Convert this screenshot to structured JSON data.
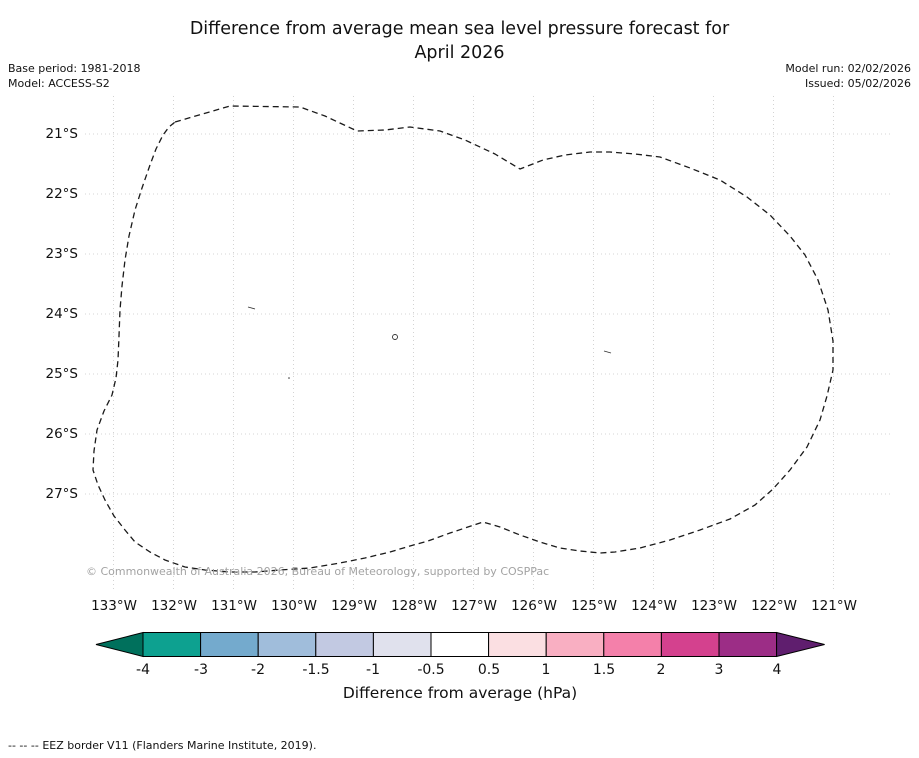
{
  "figure": {
    "title_line1": "Difference from average mean sea level pressure forecast for",
    "title_line2": "April 2026"
  },
  "meta": {
    "base_period": "Base period: 1981-2018",
    "model": "Model: ACCESS-S2",
    "model_run": "Model run: 02/02/2026",
    "issued": "Issued: 05/02/2026"
  },
  "axes": {
    "lat_ticks": [
      "21°S",
      "22°S",
      "23°S",
      "24°S",
      "25°S",
      "26°S",
      "27°S"
    ],
    "lon_ticks": [
      "133°W",
      "132°W",
      "131°W",
      "130°W",
      "129°W",
      "128°W",
      "127°W",
      "126°W",
      "125°W",
      "124°W",
      "123°W",
      "122°W",
      "121°W"
    ]
  },
  "watermark": "© Commonwealth of Australia 2026, Bureau of Meteorology, supported by COSPPac",
  "colorbar": {
    "label": "Difference from average (hPa)",
    "ticks": [
      "-4",
      "-3",
      "-2",
      "-1.5",
      "-1",
      "-0.5",
      "0.5",
      "1",
      "1.5",
      "2",
      "3",
      "4"
    ],
    "segment_colors": [
      "#0da190",
      "#74aacd",
      "#a0bddb",
      "#c2c9e2",
      "#e0e1ed",
      "#ffffff",
      "#fbdfe2",
      "#f9afc2",
      "#f480aa",
      "#d4418e",
      "#9c2d86"
    ],
    "arrow_left_color": "#00705c",
    "arrow_right_color": "#5f1e6e",
    "outline_color": "#000000"
  },
  "footer": {
    "legend_marker": "--  --  --",
    "legend_label": "EEZ border V11 (Flanders Marine Institute, 2019)."
  },
  "chart_data": {
    "type": "map",
    "title": "Difference from average mean sea level pressure forecast for April 2026",
    "variable": "Difference from average mean sea level pressure",
    "units": "hPa",
    "model": "ACCESS-S2",
    "base_period": "1981-2018",
    "model_run": "02/02/2026",
    "issued": "05/02/2026",
    "lon_axis": {
      "label_suffix": "°W",
      "ticks_deg_west": [
        133,
        132,
        131,
        130,
        129,
        128,
        127,
        126,
        125,
        124,
        123,
        122,
        121
      ],
      "range_deg_west": [
        133.5,
        120.5
      ]
    },
    "lat_axis": {
      "label_suffix": "°S",
      "ticks_deg_south": [
        21,
        22,
        23,
        24,
        25,
        26,
        27
      ],
      "range_deg_south": [
        20.4,
        28.7
      ]
    },
    "grid": true,
    "colorbar": {
      "label": "Difference from average (hPa)",
      "tick_values": [
        -4,
        -3,
        -2,
        -1.5,
        -1,
        -0.5,
        0.5,
        1,
        1.5,
        2,
        3,
        4
      ],
      "extend": "both"
    },
    "field_note": "No shaded anomaly region visible inside the domain; field effectively in the white band (-0.5 to 0.5 hPa), only tiny contour fragments visible",
    "overlays": [
      "Dashed closed outline: EEZ border V11 (Flanders Marine Institute, 2019)"
    ],
    "eez_border_approx_lonW_latS": [
      [
        132.0,
        20.8
      ],
      [
        130.5,
        20.5
      ],
      [
        128.9,
        21.0
      ],
      [
        126.2,
        21.6
      ],
      [
        124.7,
        21.3
      ],
      [
        122.1,
        22.4
      ],
      [
        121.0,
        24.9
      ],
      [
        121.7,
        26.6
      ],
      [
        123.2,
        27.6
      ],
      [
        124.9,
        28.0
      ],
      [
        126.8,
        27.5
      ],
      [
        127.7,
        27.8
      ],
      [
        130.2,
        28.3
      ],
      [
        132.4,
        28.0
      ],
      [
        133.3,
        26.6
      ],
      [
        132.9,
        23.9
      ],
      [
        132.6,
        22.3
      ]
    ]
  }
}
